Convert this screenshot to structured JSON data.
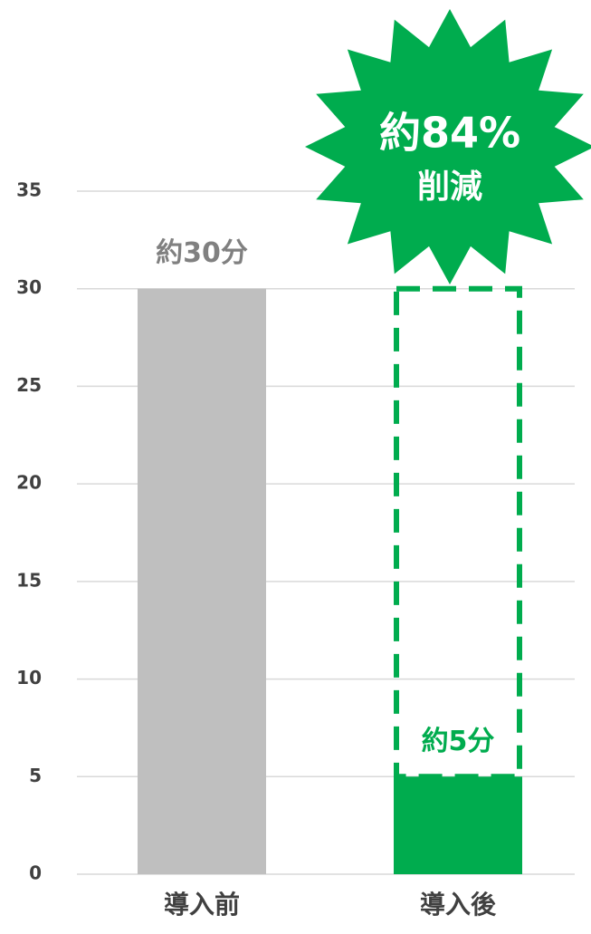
{
  "chart_data": {
    "type": "bar",
    "categories": [
      "導入前",
      "導入後"
    ],
    "values": [
      30,
      5
    ],
    "value_labels": [
      "約30分",
      "約5分"
    ],
    "colors": [
      "#bfbfbf",
      "#00ac4e"
    ],
    "ylim": [
      0,
      35
    ],
    "yticks": [
      0,
      5,
      10,
      15,
      20,
      25,
      30,
      35
    ],
    "grid": true,
    "annotation": [
      "約84%",
      "削減"
    ]
  }
}
